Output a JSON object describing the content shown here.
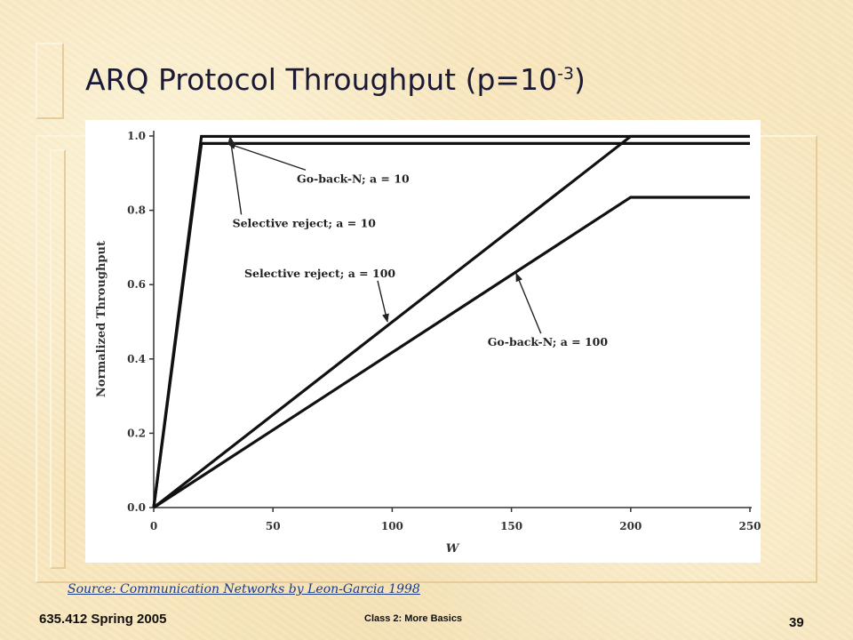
{
  "slide": {
    "title_main": "ARQ Protocol Throughput (p=10",
    "title_sup": "-3",
    "title_end": ")",
    "source": "Source: Communication Networks by Leon-Garcia 1998",
    "footer_left": "635.412 Spring 2005",
    "footer_center": "Class 2: More Basics",
    "page_number": "39"
  },
  "chart_data": {
    "type": "line",
    "title": "",
    "xlabel": "W",
    "ylabel": "Normalized Throughput",
    "xlim": [
      0,
      250
    ],
    "ylim": [
      0,
      1.0
    ],
    "xticks": [
      0,
      50,
      100,
      150,
      200,
      250
    ],
    "yticks": [
      0.0,
      0.2,
      0.4,
      0.6,
      0.8,
      1.0
    ],
    "xtick_labels": [
      "0",
      "50",
      "100",
      "150",
      "200",
      "250"
    ],
    "ytick_labels": [
      "0.0",
      "0.2",
      "0.4",
      "0.6",
      "0.8",
      "1.0"
    ],
    "grid": false,
    "series": [
      {
        "name": "Selective reject; a = 10",
        "x": [
          0,
          20,
          250
        ],
        "y": [
          0,
          0.999,
          0.999
        ]
      },
      {
        "name": "Go-back-N; a = 10",
        "x": [
          0,
          20,
          250
        ],
        "y": [
          0,
          0.98,
          0.98
        ]
      },
      {
        "name": "Selective reject; a = 100",
        "x": [
          0,
          200,
          250
        ],
        "y": [
          0,
          0.999,
          0.999
        ]
      },
      {
        "name": "Go-back-N; a = 100",
        "x": [
          0,
          200,
          250
        ],
        "y": [
          0,
          0.835,
          0.835
        ]
      }
    ],
    "annotations": [
      {
        "text": "Go-back-N; a = 10",
        "x": 60,
        "y": 0.875,
        "arrow_to": [
          31,
          0.98
        ]
      },
      {
        "text": "Selective reject; a = 10",
        "x": 33,
        "y": 0.755,
        "arrow_to": [
          32,
          0.999
        ]
      },
      {
        "text": "Selective reject; a = 100",
        "x": 38,
        "y": 0.62,
        "arrow_to": [
          98,
          0.5
        ]
      },
      {
        "text": "Go-back-N; a = 100",
        "x": 140,
        "y": 0.435,
        "arrow_to": [
          152,
          0.63
        ]
      }
    ]
  }
}
